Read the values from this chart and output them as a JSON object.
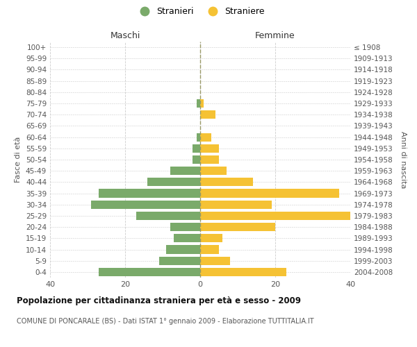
{
  "age_groups": [
    "0-4",
    "5-9",
    "10-14",
    "15-19",
    "20-24",
    "25-29",
    "30-34",
    "35-39",
    "40-44",
    "45-49",
    "50-54",
    "55-59",
    "60-64",
    "65-69",
    "70-74",
    "75-79",
    "80-84",
    "85-89",
    "90-94",
    "95-99",
    "100+"
  ],
  "birth_years": [
    "2004-2008",
    "1999-2003",
    "1994-1998",
    "1989-1993",
    "1984-1988",
    "1979-1983",
    "1974-1978",
    "1969-1973",
    "1964-1968",
    "1959-1963",
    "1954-1958",
    "1949-1953",
    "1944-1948",
    "1939-1943",
    "1934-1938",
    "1929-1933",
    "1924-1928",
    "1919-1923",
    "1914-1918",
    "1909-1913",
    "≤ 1908"
  ],
  "males": [
    27,
    11,
    9,
    7,
    8,
    17,
    29,
    27,
    14,
    8,
    2,
    2,
    1,
    0,
    0,
    1,
    0,
    0,
    0,
    0,
    0
  ],
  "females": [
    23,
    8,
    5,
    6,
    20,
    40,
    19,
    37,
    14,
    7,
    5,
    5,
    3,
    0,
    4,
    1,
    0,
    0,
    0,
    0,
    0
  ],
  "male_color": "#7aaa6a",
  "female_color": "#f5c234",
  "background_color": "#ffffff",
  "grid_color": "#cccccc",
  "title": "Popolazione per cittadinanza straniera per età e sesso - 2009",
  "subtitle": "COMUNE DI PONCARALE (BS) - Dati ISTAT 1° gennaio 2009 - Elaborazione TUTTITALIA.IT",
  "xlabel_left": "Maschi",
  "xlabel_right": "Femmine",
  "ylabel_left": "Fasce di età",
  "ylabel_right": "Anni di nascita",
  "legend_male": "Stranieri",
  "legend_female": "Straniere",
  "xlim": 40
}
